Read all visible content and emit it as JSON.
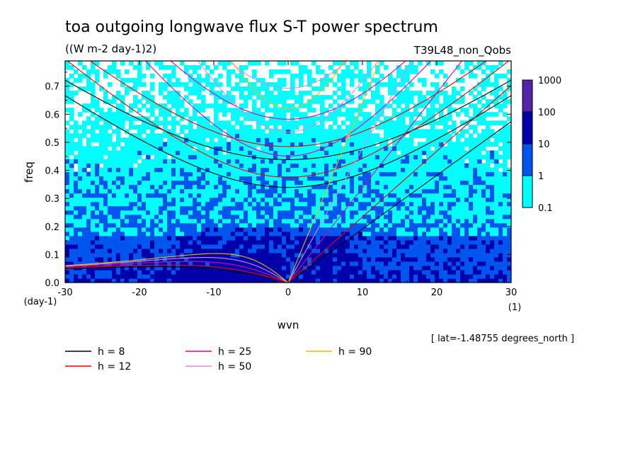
{
  "chart_data": {
    "type": "heatmap",
    "title": "toa outgoing longwave flux S-T power spectrum",
    "units": "((W m-2 day-1)2)",
    "run_label": "T39L48_non_Qobs",
    "xlabel": "wvn",
    "ylabel": "freq",
    "x_unit": "(1)",
    "y_unit": "(day-1)",
    "xlim": [
      -30,
      30
    ],
    "ylim": [
      0,
      0.79
    ],
    "x_ticks": [
      "-30",
      "-20",
      "-10",
      "0",
      "10",
      "20",
      "30"
    ],
    "y_ticks": [
      "0.0",
      "0.1",
      "0.2",
      "0.3",
      "0.4",
      "0.5",
      "0.6",
      "0.7"
    ],
    "x_tick_values": [
      -30,
      -20,
      -10,
      0,
      10,
      20,
      30
    ],
    "y_tick_values": [
      0,
      0.1,
      0.2,
      0.3,
      0.4,
      0.5,
      0.6,
      0.7
    ],
    "colorbar": {
      "levels": [
        "1000",
        "100",
        "10",
        "1",
        "0.1"
      ],
      "colors": [
        "#5522aa",
        "#0000aa",
        "#0055ee",
        "#00ffff"
      ]
    },
    "shade_colors": {
      "low": "#00ffff",
      "mid": "#0055ee",
      "high": "#0000aa",
      "top": "#5522aa"
    },
    "dispersion_curves": [
      {
        "label": "h =  8",
        "h": 8,
        "color": "#000000"
      },
      {
        "label": "h = 12",
        "h": 12,
        "color": "#ee0000"
      },
      {
        "label": "h = 25",
        "h": 25,
        "color": "#dd00aa"
      },
      {
        "label": "h = 50",
        "h": 50,
        "color": "#dd88dd"
      },
      {
        "label": "h = 90",
        "h": 90,
        "color": "#eebb00"
      }
    ],
    "annotation": "[ lat=-1.48755 degrees_north ]"
  }
}
